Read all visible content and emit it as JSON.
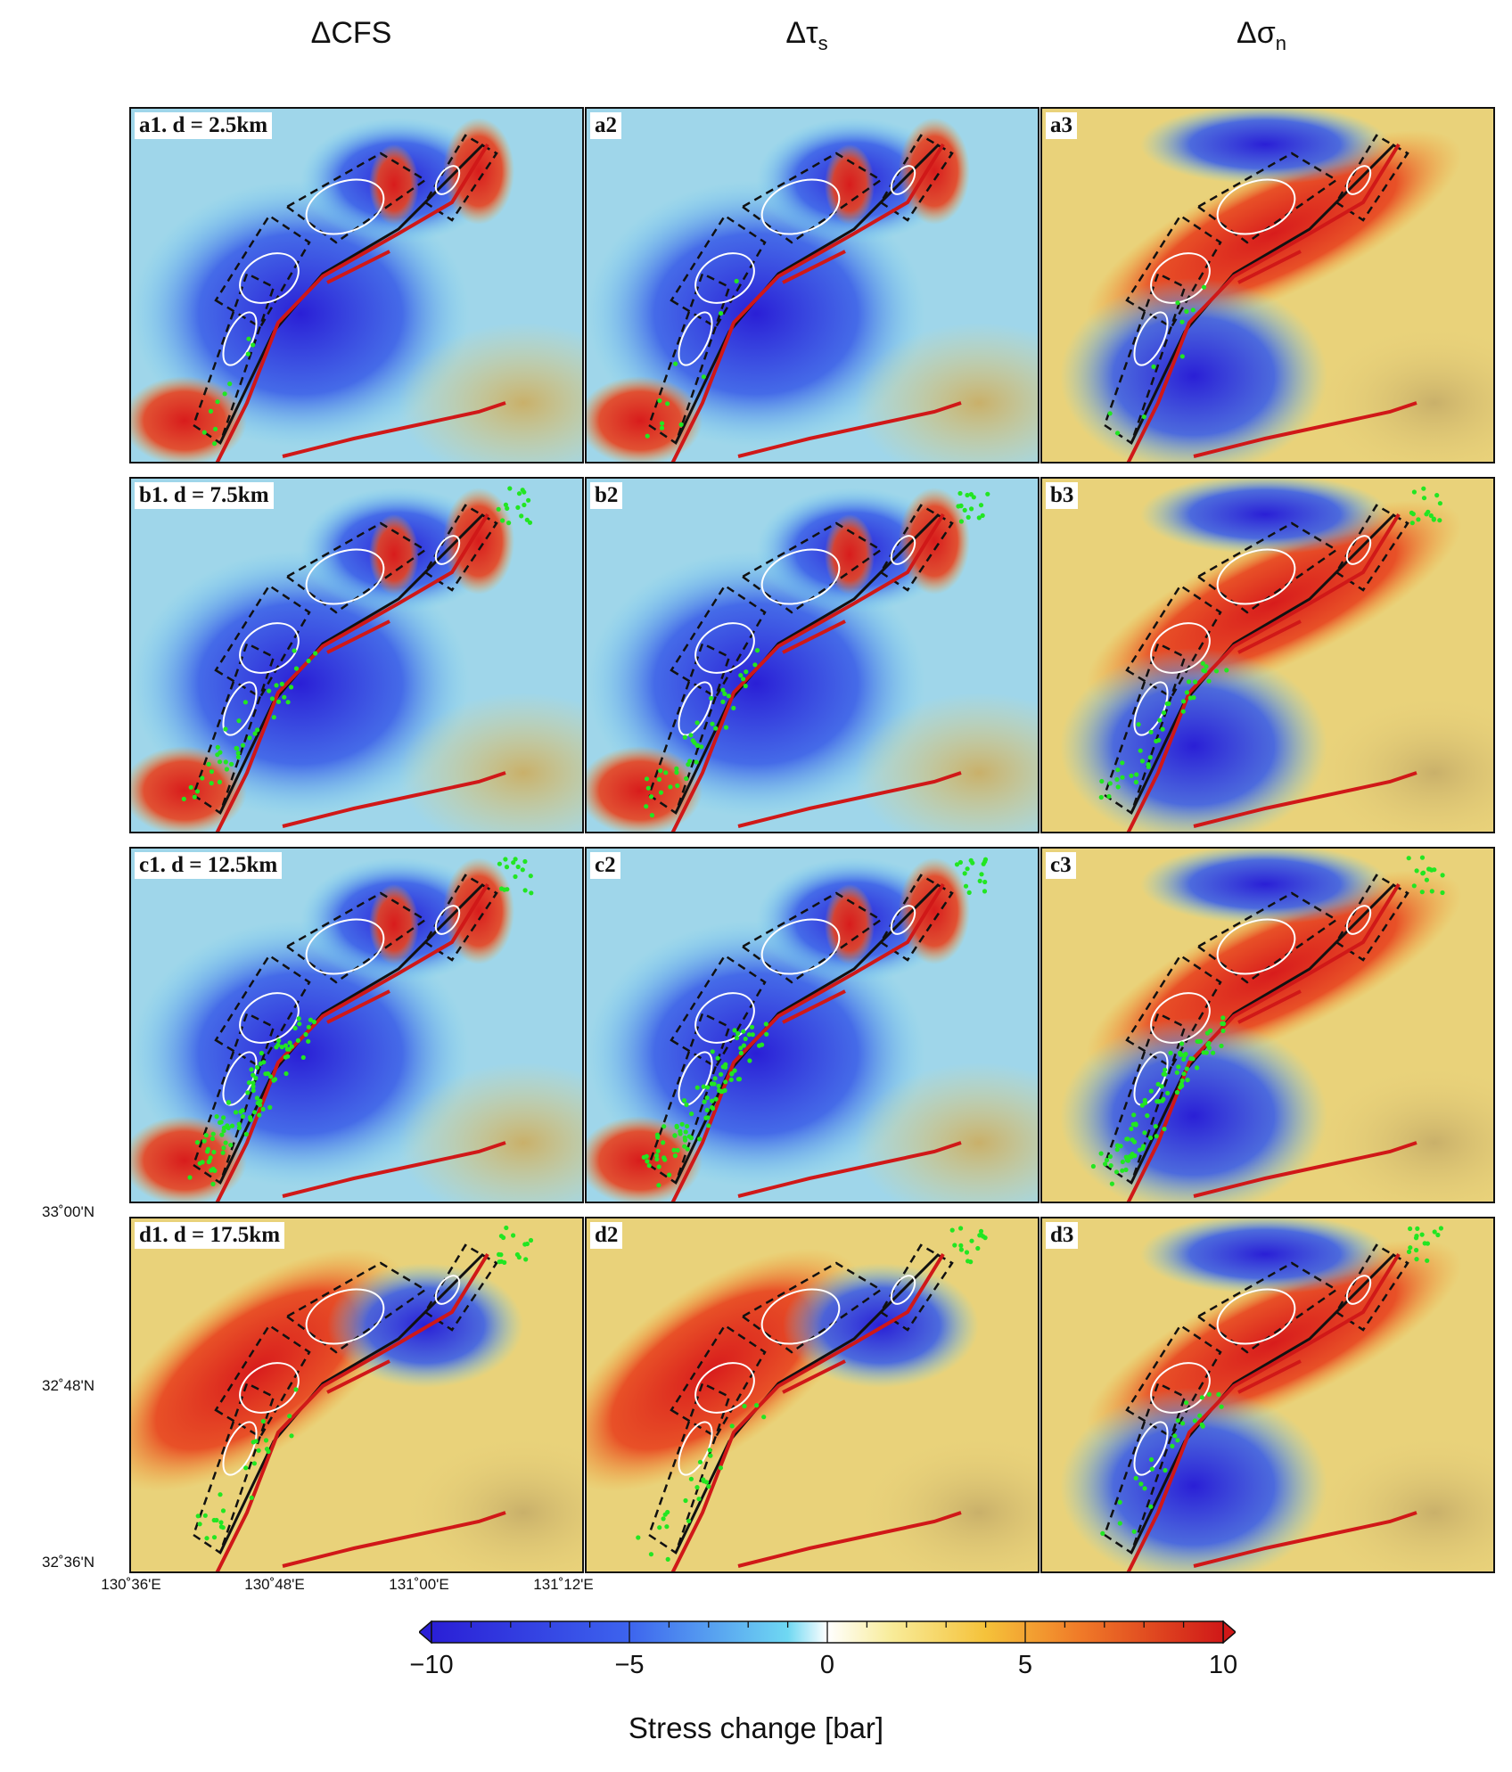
{
  "columns": {
    "c1": {
      "symbol": "ΔCFS",
      "sub": ""
    },
    "c2": {
      "symbol": "Δτ",
      "sub": "s"
    },
    "c3": {
      "symbol": "Δσ",
      "sub": "n"
    }
  },
  "rows": [
    {
      "labels": [
        "a1. d = 2.5km",
        "a2",
        "a3"
      ],
      "depth_km": 2.5
    },
    {
      "labels": [
        "b1. d = 7.5km",
        "b2",
        "b3"
      ],
      "depth_km": 7.5
    },
    {
      "labels": [
        "c1. d = 12.5km",
        "c2",
        "c3"
      ],
      "depth_km": 12.5
    },
    {
      "labels": [
        "d1. d = 17.5km",
        "d2",
        "d3"
      ],
      "depth_km": 17.5
    }
  ],
  "axes": {
    "lat_ticks": [
      "33˚00'N",
      "32˚48'N",
      "32˚36'N"
    ],
    "lon_ticks": [
      "130˚36'E",
      "130˚48'E",
      "131˚00'E",
      "131˚12'E"
    ]
  },
  "colorbar": {
    "ticks": [
      "−10",
      "−5",
      "0",
      "5",
      "10"
    ],
    "range": [
      -10,
      10
    ],
    "title": "Stress change [bar]",
    "colors": [
      "#2a1fd6",
      "#3d64ee",
      "#55c8f0",
      "#ffffff",
      "#f5dc5a",
      "#f08a2a",
      "#d81c1c"
    ]
  },
  "map_colors": {
    "fault": "#d01818",
    "seismicity": "#22e622",
    "rupture_contour": "#ffffff",
    "fault_box": "#111111"
  }
}
